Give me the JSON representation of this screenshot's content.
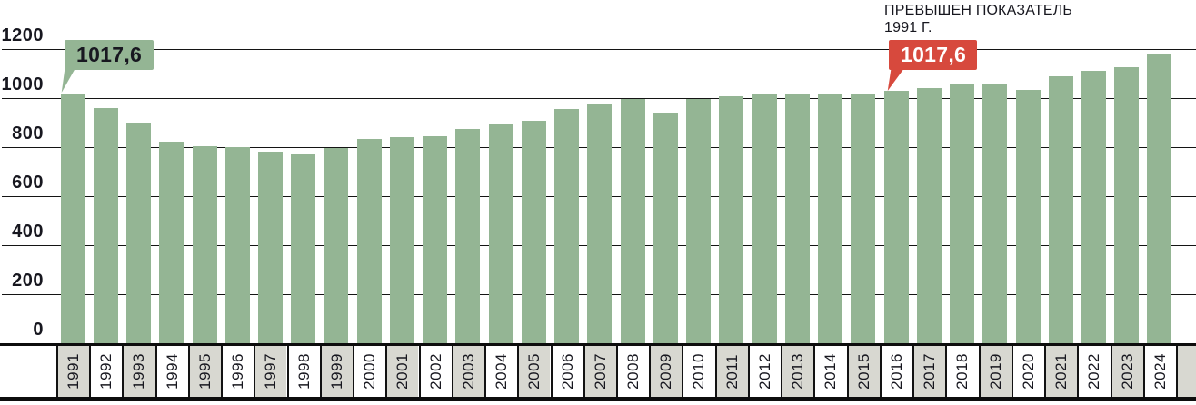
{
  "chart_data": {
    "type": "bar",
    "categories": [
      1991,
      1992,
      1993,
      1994,
      1995,
      1996,
      1997,
      1998,
      1999,
      2000,
      2001,
      2002,
      2003,
      2004,
      2005,
      2006,
      2007,
      2008,
      2009,
      2010,
      2011,
      2012,
      2013,
      2014,
      2015,
      2016,
      2017,
      2018,
      2019,
      2020,
      2021,
      2022,
      2023,
      2024
    ],
    "values": [
      1017.6,
      958,
      900,
      823,
      805,
      800,
      780,
      770,
      795,
      833,
      842,
      846,
      873,
      893,
      909,
      955,
      974,
      996,
      940,
      995,
      1008,
      1018,
      1014,
      1018,
      1014,
      1030,
      1042,
      1055,
      1060,
      1033,
      1088,
      1110,
      1125,
      1178
    ],
    "title": "",
    "xlabel": "",
    "ylabel": "",
    "ylim": [
      0,
      1200
    ],
    "yticks": [
      0,
      200,
      400,
      600,
      800,
      1000,
      1200
    ],
    "grid": true,
    "legend": "none",
    "x_shading_rule": "odd-years-grey",
    "annotations": [
      {
        "year": 1991,
        "label": "1017,6",
        "color": "green"
      },
      {
        "year": 2016,
        "label": "1017,6",
        "color": "red",
        "note": "ПРЕВЫШЕН ПОКАЗАТЕЛЬ 1991 Г."
      }
    ]
  },
  "colors": {
    "bar_green": "#94b594",
    "callout_red": "#d7493d",
    "cell_grey": "#d8d8d1",
    "ink": "#17171f"
  }
}
